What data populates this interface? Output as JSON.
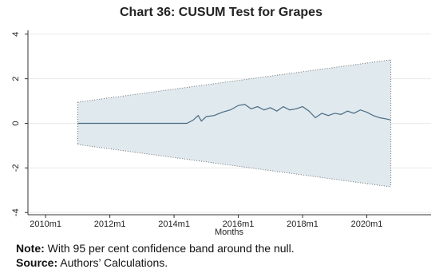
{
  "chart_data": {
    "type": "cusum",
    "title": "Chart 36: CUSUM Test for Grapes",
    "x_label": "Months",
    "xlim": [
      2009.45,
      2022.0
    ],
    "xticks": [
      {
        "value": 2010,
        "label": "2010m1"
      },
      {
        "value": 2012,
        "label": "2012m1"
      },
      {
        "value": 2014,
        "label": "2014m1"
      },
      {
        "value": 2016,
        "label": "2016m1"
      },
      {
        "value": 2018,
        "label": "2018m1"
      },
      {
        "value": 2020,
        "label": "2020m1"
      }
    ],
    "ylim": [
      -4.1,
      4.1
    ],
    "yticks": [
      -4,
      -2,
      0,
      2,
      4
    ],
    "grid": true,
    "band_x": [
      2011.0,
      2020.75
    ],
    "band_upper": [
      0.95,
      2.85
    ],
    "band_lower": [
      -0.95,
      -2.85
    ],
    "band_color": "#dfe9ee",
    "line_color": "#4a6a80",
    "x": [
      2011.0,
      2014.4,
      2014.6,
      2014.75,
      2014.85,
      2015.0,
      2015.25,
      2015.5,
      2015.75,
      2016.0,
      2016.2,
      2016.4,
      2016.6,
      2016.8,
      2017.0,
      2017.2,
      2017.4,
      2017.6,
      2017.8,
      2018.0,
      2018.2,
      2018.4,
      2018.6,
      2018.8,
      2019.0,
      2019.2,
      2019.4,
      2019.6,
      2019.8,
      2020.0,
      2020.2,
      2020.4,
      2020.6,
      2020.75
    ],
    "values": [
      0,
      0,
      0.15,
      0.35,
      0.1,
      0.3,
      0.35,
      0.5,
      0.6,
      0.8,
      0.85,
      0.65,
      0.75,
      0.6,
      0.7,
      0.55,
      0.75,
      0.6,
      0.65,
      0.75,
      0.55,
      0.25,
      0.45,
      0.35,
      0.45,
      0.4,
      0.55,
      0.45,
      0.6,
      0.5,
      0.35,
      0.25,
      0.2,
      0.15
    ]
  },
  "notes": [
    {
      "label": "Note:",
      "text": " With 95 per cent confidence band around the null."
    },
    {
      "label": "Source:",
      "text": " Authors’ Calculations."
    }
  ]
}
